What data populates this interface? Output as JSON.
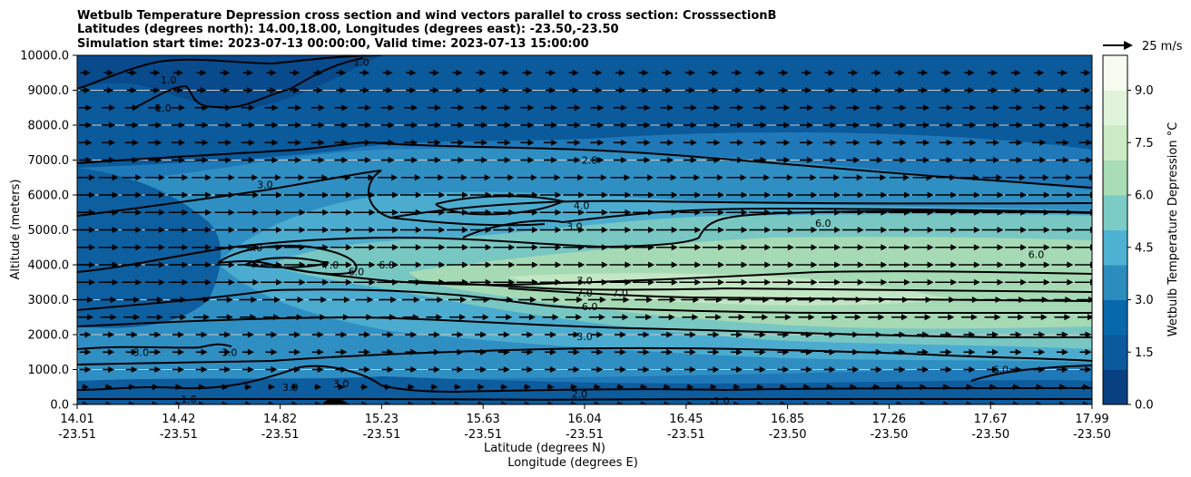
{
  "chart_data": {
    "type": "contour",
    "title_lines": [
      "Wetbulb Temperature Depression cross section and wind vectors parallel to cross section: CrosssectionB",
      "Latitudes (degrees north): 14.00,18.00, Longitudes (degrees east): -23.50,-23.50",
      "Simulation start time: 2023-07-13 00:00:00, Valid time: 2023-07-13 15:00:00"
    ],
    "ylabel": "Altitude (meters)",
    "xlabel_lat": "Latitude (degrees N)",
    "xlabel_lon": "Longitude (degrees E)",
    "ylim": [
      0,
      10000
    ],
    "y_ticks": [
      "0.0",
      "1000.0",
      "2000.0",
      "3000.0",
      "4000.0",
      "5000.0",
      "6000.0",
      "7000.0",
      "8000.0",
      "9000.0",
      "10000.0"
    ],
    "x_ticks_lat": [
      "14.01",
      "14.42",
      "14.82",
      "15.23",
      "15.63",
      "16.04",
      "16.45",
      "16.85",
      "17.26",
      "17.67",
      "17.99"
    ],
    "x_ticks_lon": [
      "-23.51",
      "-23.51",
      "-23.51",
      "-23.51",
      "-23.51",
      "-23.51",
      "-23.51",
      "-23.50",
      "-23.50",
      "-23.50",
      "-23.50"
    ],
    "colorbar": {
      "label": "Wetbulb Temperature Depression °C",
      "range": [
        0,
        10
      ],
      "ticks": [
        "0.0",
        "1.5",
        "3.0",
        "4.5",
        "6.0",
        "7.5",
        "9.0"
      ],
      "colors": [
        "#084081",
        "#0b5a9e",
        "#0868ac",
        "#2b8cbe",
        "#4eb3d3",
        "#7bccc4",
        "#a8ddb5",
        "#ccebc5",
        "#e0f3db",
        "#f7fcf0"
      ]
    },
    "quiver_key": "25 m/s",
    "contour_labels": [
      {
        "text": "1.0",
        "x": 0.09,
        "alt": 9300
      },
      {
        "text": "1.0",
        "x": 0.28,
        "alt": 9800
      },
      {
        "text": "1.0",
        "x": 0.085,
        "alt": 8500
      },
      {
        "text": "2.0",
        "x": 0.505,
        "alt": 7000
      },
      {
        "text": "3.0",
        "x": 0.185,
        "alt": 6300
      },
      {
        "text": "4.0",
        "x": 0.497,
        "alt": 5700
      },
      {
        "text": "3.0",
        "x": 0.49,
        "alt": 5100
      },
      {
        "text": "6.0",
        "x": 0.735,
        "alt": 5200
      },
      {
        "text": "4.0",
        "x": 0.175,
        "alt": 4500
      },
      {
        "text": "7.0",
        "x": 0.25,
        "alt": 4000
      },
      {
        "text": "6.0",
        "x": 0.275,
        "alt": 3800
      },
      {
        "text": "6.0",
        "x": 0.305,
        "alt": 4000
      },
      {
        "text": "6.0",
        "x": 0.945,
        "alt": 4300
      },
      {
        "text": "7.0",
        "x": 0.5,
        "alt": 3550
      },
      {
        "text": "7.0",
        "x": 0.5,
        "alt": 3200
      },
      {
        "text": "7.0",
        "x": 0.535,
        "alt": 3200
      },
      {
        "text": "6.0",
        "x": 0.505,
        "alt": 2800
      },
      {
        "text": "3.0",
        "x": 0.5,
        "alt": 1950
      },
      {
        "text": "3.0",
        "x": 0.063,
        "alt": 1500
      },
      {
        "text": "3.0",
        "x": 0.15,
        "alt": 1500
      },
      {
        "text": "6.0",
        "x": 0.91,
        "alt": 1000
      },
      {
        "text": "3.0",
        "x": 0.21,
        "alt": 500
      },
      {
        "text": "3.0",
        "x": 0.26,
        "alt": 600
      },
      {
        "text": "2.0",
        "x": 0.495,
        "alt": 300
      },
      {
        "text": "1.0",
        "x": 0.11,
        "alt": 150
      },
      {
        "text": "1.0",
        "x": 0.635,
        "alt": 100
      }
    ]
  }
}
